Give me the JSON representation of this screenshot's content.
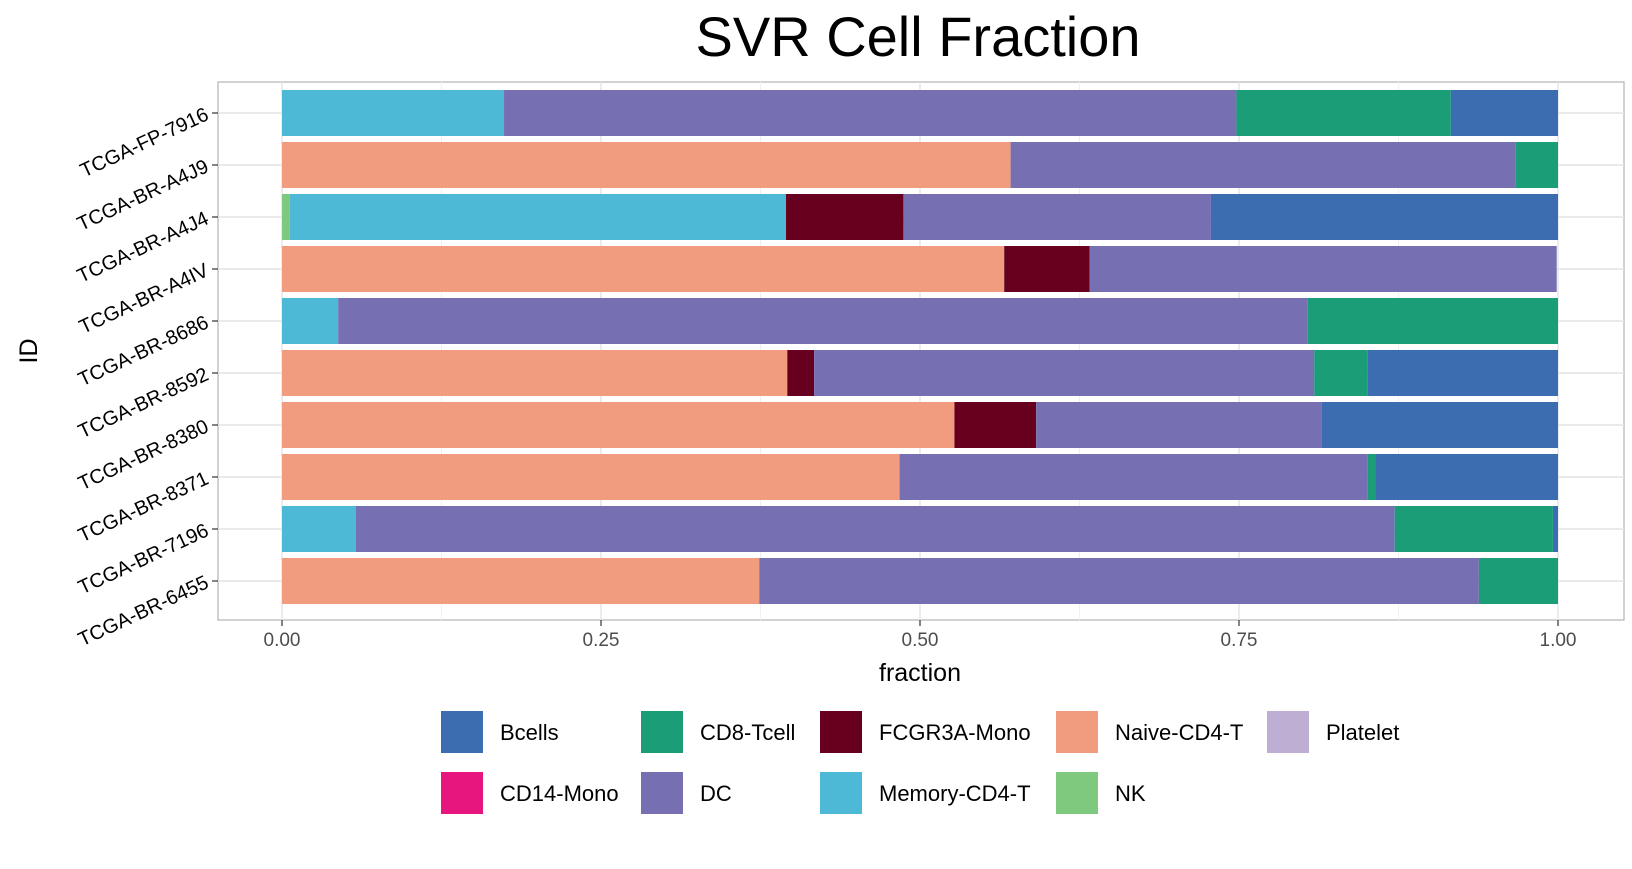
{
  "chart_data": {
    "type": "bar",
    "orientation": "horizontal",
    "stacked": true,
    "title": "SVR Cell Fraction",
    "xlabel": "fraction",
    "ylabel": "ID",
    "xlim": [
      0,
      1
    ],
    "x_ticks": [
      "0.00",
      "0.25",
      "0.50",
      "0.75",
      "1.00"
    ],
    "x_tick_values": [
      0,
      0.25,
      0.5,
      0.75,
      1.0
    ],
    "grid": true,
    "legend_position": "bottom",
    "categories": [
      "TCGA-FP-7916",
      "TCGA-BR-A4J9",
      "TCGA-BR-A4J4",
      "TCGA-BR-A4IV",
      "TCGA-BR-8686",
      "TCGA-BR-8592",
      "TCGA-BR-8380",
      "TCGA-BR-8371",
      "TCGA-BR-7196",
      "TCGA-BR-6455"
    ],
    "stack_order": [
      "Platelet",
      "NK",
      "Naive-CD4-T",
      "Memory-CD4-T",
      "FCGR3A-Mono",
      "DC",
      "CD8-Tcell",
      "CD14-Mono",
      "Bcells"
    ],
    "series": [
      {
        "name": "Bcells",
        "color": "#3B6DB0",
        "values": [
          0.084,
          0.0,
          0.272,
          0.0,
          0.0,
          0.149,
          0.185,
          0.143,
          0.004,
          0.0
        ]
      },
      {
        "name": "CD14-Mono",
        "color": "#E7157E",
        "values": [
          0,
          0,
          0,
          0,
          0,
          0,
          0,
          0,
          0,
          0
        ]
      },
      {
        "name": "CD8-Tcell",
        "color": "#1B9E77",
        "values": [
          0.168,
          0.033,
          0.0,
          0.0,
          0.196,
          0.042,
          0.0,
          0.006,
          0.124,
          0.062
        ]
      },
      {
        "name": "DC",
        "color": "#7670B3",
        "values": [
          0.574,
          0.396,
          0.241,
          0.366,
          0.76,
          0.392,
          0.224,
          0.367,
          0.814,
          0.564
        ]
      },
      {
        "name": "FCGR3A-Mono",
        "color": "#67001F",
        "values": [
          0.0,
          0.0,
          0.092,
          0.067,
          0.0,
          0.021,
          0.064,
          0.0,
          0.0,
          0.0
        ]
      },
      {
        "name": "Memory-CD4-T",
        "color": "#4DB9D6",
        "values": [
          0.174,
          0.0,
          0.389,
          0.0,
          0.044,
          0.0,
          0.0,
          0.0,
          0.058,
          0.0
        ]
      },
      {
        "name": "Naive-CD4-T",
        "color": "#F19B7F",
        "values": [
          0.0,
          0.571,
          0.0,
          0.566,
          0.0,
          0.396,
          0.527,
          0.484,
          0.0,
          0.374
        ]
      },
      {
        "name": "NK",
        "color": "#7FC97F",
        "values": [
          0.0,
          0.0,
          0.006,
          0.0,
          0.0,
          0.0,
          0.0,
          0.0,
          0.0,
          0.0
        ]
      },
      {
        "name": "Platelet",
        "color": "#BEAED4",
        "values": [
          0,
          0,
          0,
          0,
          0,
          0,
          0,
          0,
          0,
          0
        ]
      }
    ],
    "legend": {
      "rows": [
        [
          "Bcells",
          "CD8-Tcell",
          "FCGR3A-Mono",
          "Naive-CD4-T",
          "Platelet"
        ],
        [
          "CD14-Mono",
          "DC",
          "Memory-CD4-T",
          "NK"
        ]
      ]
    }
  }
}
